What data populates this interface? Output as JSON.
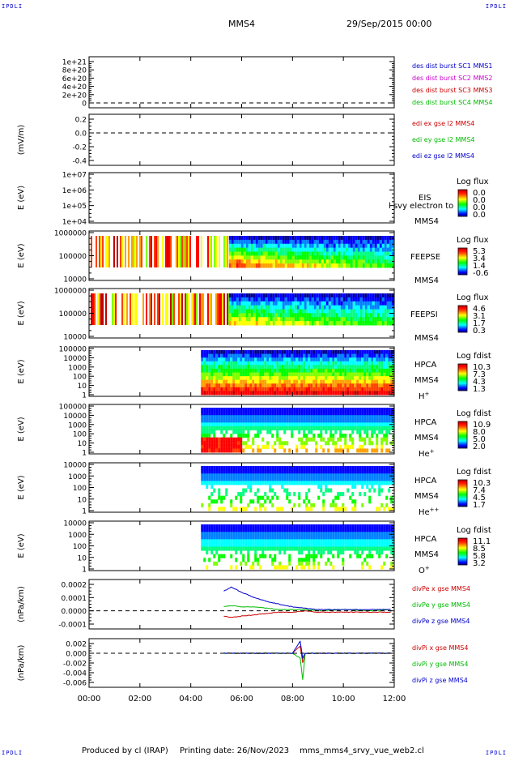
{
  "header": {
    "corner_label": "IPDLI",
    "spacecraft": "MMS4",
    "datetime": "29/Sep/2015 00:00"
  },
  "footer": {
    "produced_by": "Produced by cl (IRAP)",
    "printing_date": "Printing date: 26/Nov/2023",
    "script_name": "mms_mms4_srvy_vue_web2.cl"
  },
  "colors": {
    "spectral": [
      "#00008b",
      "#0000ff",
      "#0080ff",
      "#00ffff",
      "#00ff80",
      "#00ff00",
      "#80ff00",
      "#ffff00",
      "#ffa000",
      "#ff4000",
      "#ff0000",
      "#c00000"
    ]
  },
  "x_axis": {
    "ticks": [
      "00:00",
      "02:00",
      "04:00",
      "06:00",
      "08:00",
      "10:00",
      "12:00"
    ]
  },
  "chart_data": [
    {
      "type": "line",
      "panel": "des dist burst",
      "ylabel": "",
      "y_ticks": [
        "1e+21",
        "8e+20",
        "6e+20",
        "4e+20",
        "2e+20",
        "0"
      ],
      "legend": [
        {
          "name": "des dist burst SC1 MMS1",
          "color": "#0000cc"
        },
        {
          "name": "des dist burst SC2 MMS2",
          "color": "#cc00cc"
        },
        {
          "name": "des dist burst SC3 MMS3",
          "color": "#cc0000"
        },
        {
          "name": "des dist burst SC4 MMS4",
          "color": "#00bb00"
        }
      ],
      "dashed_zero": true,
      "series": []
    },
    {
      "type": "line",
      "panel": "edi",
      "ylabel": "(mV/m)",
      "y_ticks": [
        "0.2",
        "0.0",
        "-0.2",
        "-0.4"
      ],
      "legend": [
        {
          "name": "edi ex gse l2 MMS4",
          "color": "#cc0000"
        },
        {
          "name": "edi ey gse l2 MMS4",
          "color": "#00bb00"
        },
        {
          "name": "edi ez gse l2 MMS4",
          "color": "#0000cc"
        }
      ],
      "dashed_zero": true,
      "series": []
    },
    {
      "type": "heatmap",
      "panel": "EIS",
      "ylabel": "E (eV)",
      "y_ticks": [
        "1e+07",
        "1e+06",
        "1e+05",
        "1e+04"
      ],
      "instrument": "EIS",
      "instrument_sc": "MMS4",
      "overlay_text": "l svy electron to",
      "colorbar_title": "Log flux",
      "colorbar_ticks": [
        "0.0",
        "0.0",
        "0.0",
        "0.0"
      ]
    },
    {
      "type": "heatmap",
      "panel": "FEEPSE",
      "ylabel": "E (eV)",
      "y_ticks": [
        "1000000",
        "100000",
        "10000"
      ],
      "instrument": "FEEPSE",
      "instrument_sc": "MMS4",
      "colorbar_title": "Log flux",
      "colorbar_ticks": [
        "5.3",
        "3.4",
        "1.4",
        "-0.6"
      ]
    },
    {
      "type": "heatmap",
      "panel": "FEEPSI",
      "ylabel": "E (eV)",
      "y_ticks": [
        "1000000",
        "100000",
        "10000"
      ],
      "instrument": "FEEPSI",
      "instrument_sc": "MMS4",
      "colorbar_title": "Log flux",
      "colorbar_ticks": [
        "4.6",
        "3.1",
        "1.7",
        "0.3"
      ]
    },
    {
      "type": "heatmap",
      "panel": "HPCA H+",
      "ylabel": "E (eV)",
      "y_ticks": [
        "100000",
        "10000",
        "1000",
        "100",
        "10",
        "1"
      ],
      "instrument": "HPCA",
      "instrument_sc": "MMS4",
      "species": "H",
      "species_sup": "+",
      "colorbar_title": "Log fdist",
      "colorbar_ticks": [
        "10.3",
        "7.3",
        "4.3",
        "1.3"
      ]
    },
    {
      "type": "heatmap",
      "panel": "HPCA He+",
      "ylabel": "E (eV)",
      "y_ticks": [
        "100000",
        "10000",
        "1000",
        "100",
        "10",
        "1"
      ],
      "instrument": "HPCA",
      "instrument_sc": "MMS4",
      "species": "He",
      "species_sup": "+",
      "colorbar_title": "Log fdist",
      "colorbar_ticks": [
        "10.9",
        "8.0",
        "5.0",
        "2.0"
      ]
    },
    {
      "type": "heatmap",
      "panel": "HPCA He++",
      "ylabel": "E (eV)",
      "y_ticks": [
        "10000",
        "1000",
        "100",
        "10",
        "1"
      ],
      "instrument": "HPCA",
      "instrument_sc": "MMS4",
      "species": "He",
      "species_sup": "++",
      "colorbar_title": "Log fdist",
      "colorbar_ticks": [
        "10.3",
        "7.4",
        "4.5",
        "1.7"
      ]
    },
    {
      "type": "heatmap",
      "panel": "HPCA O+",
      "ylabel": "E (eV)",
      "y_ticks": [
        "10000",
        "1000",
        "100",
        "10",
        "1"
      ],
      "instrument": "HPCA",
      "instrument_sc": "MMS4",
      "species": "O",
      "species_sup": "+",
      "colorbar_title": "Log fdist",
      "colorbar_ticks": [
        "11.1",
        "8.5",
        "5.8",
        "3.2"
      ]
    },
    {
      "type": "line",
      "panel": "divPe",
      "ylabel": "(nPa/km)",
      "y_ticks": [
        "0.0002",
        "0.0001",
        "0.0000",
        "-0.0001"
      ],
      "legend": [
        {
          "name": "divPe x gse MMS4",
          "color": "#cc0000"
        },
        {
          "name": "divPe y gse MMS4",
          "color": "#00bb00"
        },
        {
          "name": "divPe z gse MMS4",
          "color": "#0000cc"
        }
      ],
      "dashed_zero": true,
      "series": [
        {
          "name": "divPe x gse MMS4",
          "x_hours": [
            5.3,
            5.6,
            6.0,
            6.5,
            7.0,
            7.5,
            8.0,
            8.5,
            9.0,
            10.0,
            11.0,
            11.9
          ],
          "values": [
            -4e-05,
            -5e-05,
            -4e-05,
            -3e-05,
            -2e-05,
            -1e-05,
            -1e-05,
            0.0,
            -1e-05,
            -1e-05,
            -1e-05,
            -1e-05
          ]
        },
        {
          "name": "divPe y gse MMS4",
          "x_hours": [
            5.3,
            5.6,
            6.0,
            6.5,
            7.0,
            7.5,
            8.0,
            8.5,
            9.0,
            10.0,
            11.0,
            11.9
          ],
          "values": [
            3e-05,
            4e-05,
            3e-05,
            3e-05,
            2e-05,
            1e-05,
            1e-05,
            1e-05,
            0.0,
            1e-05,
            0.0,
            1e-05
          ]
        },
        {
          "name": "divPe z gse MMS4",
          "x_hours": [
            5.3,
            5.6,
            6.0,
            6.5,
            7.0,
            7.5,
            8.0,
            8.5,
            9.0,
            10.0,
            11.0,
            11.9
          ],
          "values": [
            0.00015,
            0.00018,
            0.00014,
            0.0001,
            7e-05,
            5e-05,
            3e-05,
            2e-05,
            1e-05,
            1e-05,
            1e-05,
            1e-05
          ]
        }
      ]
    },
    {
      "type": "line",
      "panel": "divPi",
      "ylabel": "(nPa/km)",
      "y_ticks": [
        "0.002",
        "0.000",
        "-0.002",
        "-0.004",
        "-0.006"
      ],
      "legend": [
        {
          "name": "divPi x gse MMS4",
          "color": "#cc0000"
        },
        {
          "name": "divPi y gse MMS4",
          "color": "#00bb00"
        },
        {
          "name": "divPi z gse MMS4",
          "color": "#0000cc"
        }
      ],
      "dashed_zero": true,
      "series": [
        {
          "name": "divPi x gse MMS4",
          "x_hours": [
            5.3,
            6.0,
            7.0,
            8.0,
            8.3,
            8.4,
            8.5,
            9.0,
            10.0,
            11.9
          ],
          "values": [
            0.0,
            0.0,
            0.0,
            0.0,
            0.0015,
            -0.002,
            0.0,
            0.0,
            0.0,
            0.0
          ]
        },
        {
          "name": "divPi y gse MMS4",
          "x_hours": [
            5.3,
            6.0,
            7.0,
            8.0,
            8.3,
            8.4,
            8.5,
            9.0,
            10.0,
            11.9
          ],
          "values": [
            0.0,
            0.0,
            0.0,
            0.0,
            -0.001,
            -0.0055,
            0.0,
            0.0,
            0.0,
            0.0
          ]
        },
        {
          "name": "divPi z gse MMS4",
          "x_hours": [
            5.3,
            6.0,
            7.0,
            8.0,
            8.3,
            8.4,
            8.5,
            9.0,
            10.0,
            11.9
          ],
          "values": [
            0.0,
            0.0,
            0.0,
            0.0,
            0.0025,
            -0.001,
            0.0,
            0.0,
            0.0,
            0.0
          ]
        }
      ]
    }
  ]
}
